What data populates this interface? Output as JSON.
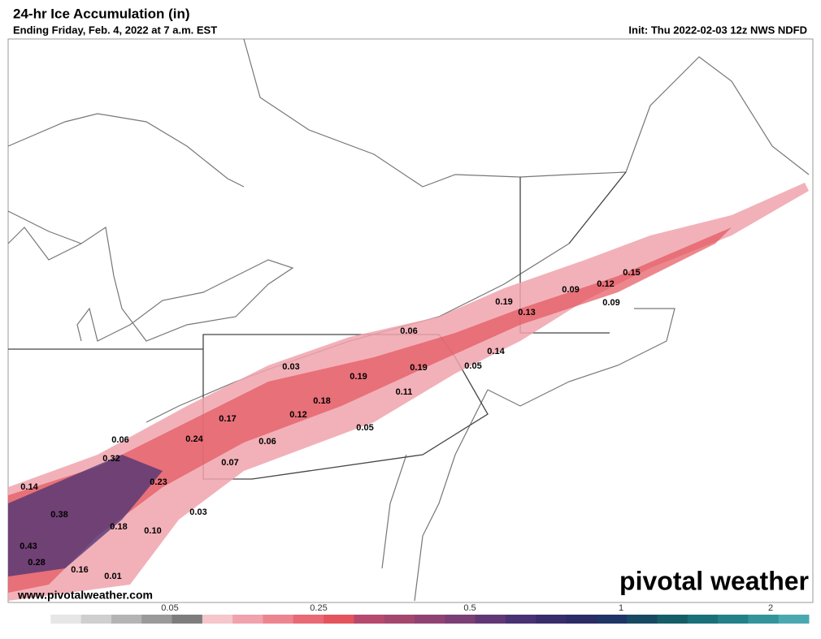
{
  "header": {
    "title": "24-hr Ice Accumulation (in)",
    "subtitle": "Ending Friday, Feb. 4, 2022 at 7 a.m. EST",
    "init": "Init: Thu 2022-02-03 12z NWS NDFD"
  },
  "map": {
    "labels": [
      "0.03",
      "0.06",
      "0.19",
      "0.13",
      "0.09",
      "0.12",
      "0.15",
      "0.09",
      "0.14",
      "0.05",
      "0.19",
      "0.19",
      "0.11",
      "0.18",
      "0.12",
      "0.05",
      "0.17",
      "0.06",
      "0.24",
      "0.06",
      "0.32",
      "0.07",
      "0.23",
      "0.14",
      "0.03",
      "0.38",
      "0.18",
      "0.10",
      "0.43",
      "0.28",
      "0.16",
      "0.01"
    ]
  },
  "footer": {
    "website": "www.pivotalweather.com",
    "logo": "pivotal weather"
  },
  "colorbar": {
    "ticks": [
      "0.05",
      "0.25",
      "0.5",
      "1",
      "2"
    ],
    "colors": [
      "#ffffff",
      "#e6e6e6",
      "#cfcfcf",
      "#b4b4b4",
      "#9a9a9a",
      "#7d7d7d",
      "#f5c6cc",
      "#f0a3ad",
      "#ec8590",
      "#e86a75",
      "#e4545c",
      "#b64a6e",
      "#a4476f",
      "#8f4372",
      "#7a3f74",
      "#5f3875",
      "#483273",
      "#372c6c",
      "#2b2b66",
      "#1e3566",
      "#174a62",
      "#155e66",
      "#1a7078",
      "#238189",
      "#34949c",
      "#4aa8b1"
    ]
  }
}
